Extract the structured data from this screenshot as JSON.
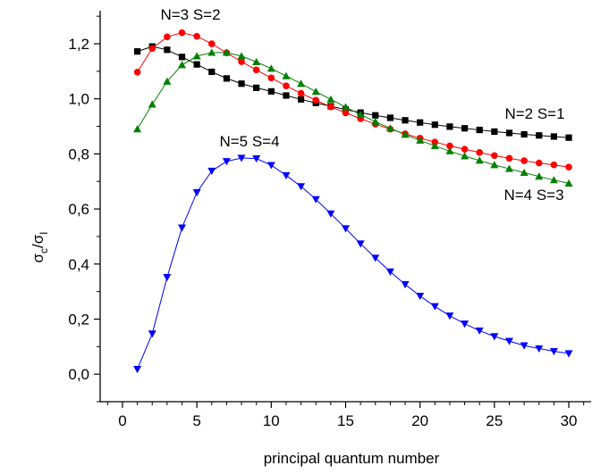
{
  "chart_data": {
    "type": "scatter",
    "xlabel": "principal quantum number",
    "ylabel": {
      "base": "σ",
      "sub1": "c",
      "slash": "/σ",
      "sub2": "I"
    },
    "xlim": [
      -1.5,
      31.5
    ],
    "ylim": [
      -0.1,
      1.32
    ],
    "x_ticks": [
      0,
      5,
      10,
      15,
      20,
      25,
      30
    ],
    "x_tick_labels": [
      "0",
      "5",
      "10",
      "15",
      "20",
      "25",
      "30"
    ],
    "y_ticks": [
      0.0,
      0.2,
      0.4,
      0.6,
      0.8,
      1.0,
      1.2
    ],
    "y_tick_labels": [
      "0,0",
      "0,2",
      "0,4",
      "0,6",
      "0,8",
      "1,0",
      "1,2"
    ],
    "grid": false,
    "legend": "none",
    "series": [
      {
        "name": "N=2 S=1",
        "color": "#000000",
        "marker": "square",
        "x": [
          1,
          2,
          3,
          4,
          5,
          6,
          7,
          8,
          9,
          10,
          11,
          12,
          13,
          14,
          15,
          16,
          17,
          18,
          19,
          20,
          21,
          22,
          23,
          24,
          25,
          26,
          27,
          28,
          29,
          30
        ],
        "y": [
          1.172,
          1.19,
          1.178,
          1.152,
          1.125,
          1.098,
          1.074,
          1.055,
          1.04,
          1.027,
          1.012,
          0.998,
          0.985,
          0.973,
          0.961,
          0.95,
          0.94,
          0.931,
          0.922,
          0.914,
          0.906,
          0.899,
          0.893,
          0.887,
          0.881,
          0.876,
          0.871,
          0.867,
          0.863,
          0.859
        ]
      },
      {
        "name": "N=3 S=2",
        "color": "#ff0000",
        "marker": "circle",
        "x": [
          1,
          2,
          3,
          4,
          5,
          6,
          7,
          8,
          9,
          10,
          11,
          12,
          13,
          14,
          15,
          16,
          17,
          18,
          19,
          20,
          21,
          22,
          23,
          24,
          25,
          26,
          27,
          28,
          29,
          30
        ],
        "y": [
          1.097,
          1.183,
          1.225,
          1.24,
          1.227,
          1.2,
          1.167,
          1.135,
          1.105,
          1.076,
          1.047,
          1.02,
          0.995,
          0.971,
          0.949,
          0.928,
          0.908,
          0.89,
          0.873,
          0.857,
          0.843,
          0.829,
          0.817,
          0.805,
          0.794,
          0.784,
          0.775,
          0.767,
          0.76,
          0.752
        ]
      },
      {
        "name": "N=4 S=3",
        "color": "#008000",
        "marker": "triangle-up",
        "x": [
          1,
          2,
          3,
          4,
          5,
          6,
          7,
          8,
          9,
          10,
          11,
          12,
          13,
          14,
          15,
          16,
          17,
          18,
          19,
          20,
          21,
          22,
          23,
          24,
          25,
          26,
          27,
          28,
          29,
          30
        ],
        "y": [
          0.89,
          0.98,
          1.063,
          1.123,
          1.155,
          1.168,
          1.168,
          1.155,
          1.134,
          1.11,
          1.083,
          1.055,
          1.026,
          0.998,
          0.97,
          0.943,
          0.917,
          0.893,
          0.87,
          0.849,
          0.829,
          0.81,
          0.792,
          0.776,
          0.76,
          0.746,
          0.732,
          0.718,
          0.705,
          0.693
        ]
      },
      {
        "name": "N=5 S=4",
        "color": "#0000ff",
        "marker": "triangle-down",
        "x": [
          1,
          2,
          3,
          4,
          5,
          6,
          7,
          8,
          9,
          10,
          11,
          12,
          13,
          14,
          15,
          16,
          17,
          18,
          19,
          20,
          21,
          22,
          23,
          24,
          25,
          26,
          27,
          28,
          29,
          30
        ],
        "y": [
          0.018,
          0.147,
          0.352,
          0.532,
          0.66,
          0.738,
          0.773,
          0.785,
          0.783,
          0.759,
          0.722,
          0.682,
          0.635,
          0.583,
          0.529,
          0.474,
          0.422,
          0.372,
          0.326,
          0.284,
          0.246,
          0.212,
          0.183,
          0.158,
          0.137,
          0.12,
          0.104,
          0.093,
          0.083,
          0.075
        ]
      }
    ]
  }
}
